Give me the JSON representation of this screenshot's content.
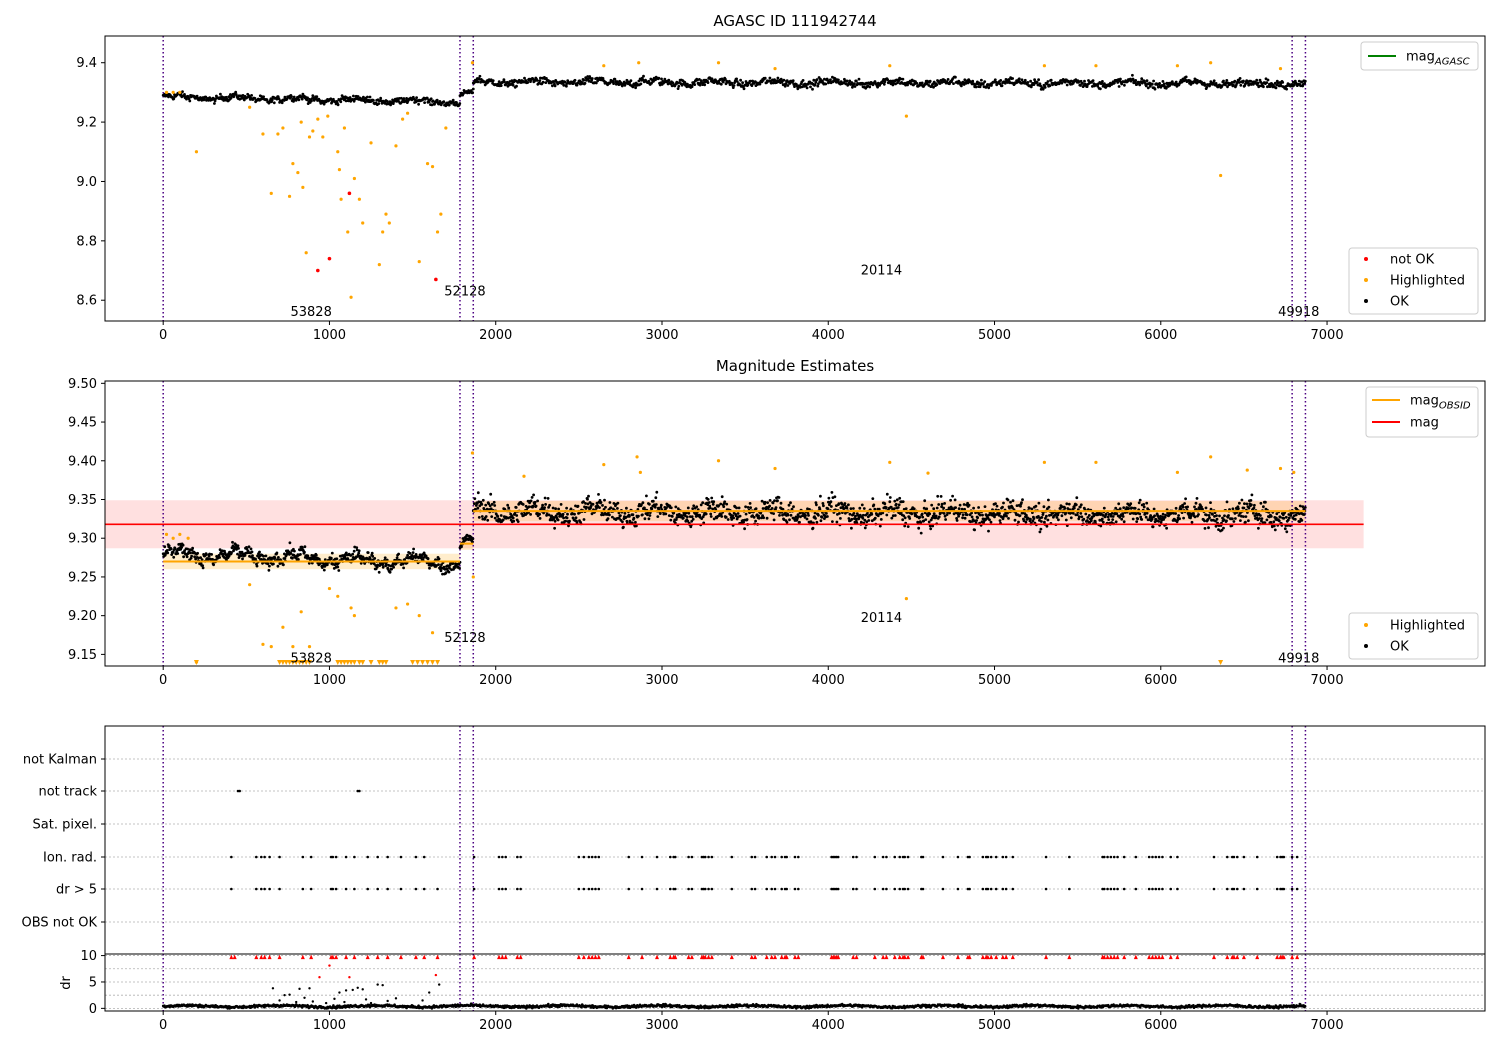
{
  "chart_data": [
    {
      "type": "scatter",
      "title": "AGASC ID 111942744",
      "xlim": [
        -350,
        7950
      ],
      "ylim": [
        8.53,
        9.49
      ],
      "xticks": [
        "0",
        "1000",
        "2000",
        "3000",
        "4000",
        "5000",
        "6000",
        "7000"
      ],
      "yticks": [
        "8.6",
        "8.8",
        "9.0",
        "9.2",
        "9.4"
      ],
      "obsid_boundaries": [
        0,
        1785,
        1865,
        6790,
        6870
      ],
      "obsid_labels": [
        {
          "text": "53828",
          "x": 890,
          "y": 8.56
        },
        {
          "text": "52128",
          "x": 1815,
          "y": 8.63
        },
        {
          "text": "20114",
          "x": 4320,
          "y": 8.7
        },
        {
          "text": "49918",
          "x": 6830,
          "y": 8.56
        }
      ],
      "legend_top": [
        {
          "name": "mag_AGASC",
          "base": "mag",
          "sub": "AGASC",
          "color": "#008000"
        }
      ],
      "legend_bottom": [
        {
          "name": "not OK",
          "color": "#ff0000"
        },
        {
          "name": "Highlighted",
          "color": "#ffa500"
        },
        {
          "name": "OK",
          "color": "#000000"
        }
      ],
      "segments": [
        {
          "x0": 0,
          "x1": 1785,
          "y_start": 9.285,
          "y_end": 9.268,
          "noise": 0.01
        },
        {
          "x0": 1785,
          "x1": 1865,
          "y_start": 9.29,
          "y_end": 9.3,
          "noise": 0.008
        },
        {
          "x0": 1865,
          "x1": 6870,
          "y_start": 9.335,
          "y_end": 9.33,
          "noise": 0.012
        }
      ],
      "highlight_points": [
        [
          200,
          9.1
        ],
        [
          520,
          9.25
        ],
        [
          600,
          9.16
        ],
        [
          650,
          8.96
        ],
        [
          690,
          9.16
        ],
        [
          720,
          9.18
        ],
        [
          760,
          8.95
        ],
        [
          780,
          9.06
        ],
        [
          810,
          9.03
        ],
        [
          830,
          9.2
        ],
        [
          840,
          8.98
        ],
        [
          860,
          8.76
        ],
        [
          880,
          9.15
        ],
        [
          900,
          9.17
        ],
        [
          930,
          9.21
        ],
        [
          960,
          9.15
        ],
        [
          990,
          9.22
        ],
        [
          1050,
          9.1
        ],
        [
          1060,
          9.04
        ],
        [
          1070,
          8.94
        ],
        [
          1090,
          9.18
        ],
        [
          1110,
          8.83
        ],
        [
          1130,
          8.61
        ],
        [
          1150,
          9.01
        ],
        [
          1180,
          8.94
        ],
        [
          1200,
          8.86
        ],
        [
          1250,
          9.13
        ],
        [
          1300,
          8.72
        ],
        [
          1320,
          8.83
        ],
        [
          1340,
          8.89
        ],
        [
          1360,
          8.86
        ],
        [
          1400,
          9.12
        ],
        [
          1440,
          9.21
        ],
        [
          1470,
          9.23
        ],
        [
          1540,
          8.73
        ],
        [
          1590,
          9.06
        ],
        [
          1620,
          9.05
        ],
        [
          1650,
          8.83
        ],
        [
          1670,
          8.89
        ],
        [
          1700,
          9.18
        ],
        [
          4470,
          9.22
        ],
        [
          6360,
          9.02
        ],
        [
          2650,
          9.39
        ],
        [
          2860,
          9.4
        ],
        [
          3340,
          9.4
        ],
        [
          3680,
          9.38
        ],
        [
          4370,
          9.39
        ],
        [
          5300,
          9.39
        ],
        [
          5610,
          9.39
        ],
        [
          6100,
          9.39
        ],
        [
          6300,
          9.4
        ],
        [
          6720,
          9.38
        ],
        [
          20,
          9.3
        ],
        [
          60,
          9.3
        ],
        [
          100,
          9.3
        ],
        [
          1860,
          9.4
        ]
      ],
      "notok_points": [
        [
          930,
          8.7
        ],
        [
          1000,
          8.74
        ],
        [
          1120,
          8.96
        ],
        [
          1640,
          8.67
        ]
      ]
    },
    {
      "type": "scatter",
      "title": "Magnitude Estimates",
      "xlim": [
        -350,
        7950
      ],
      "ylim": [
        9.135,
        9.503
      ],
      "xticks": [
        "0",
        "1000",
        "2000",
        "3000",
        "4000",
        "5000",
        "6000",
        "7000"
      ],
      "yticks": [
        "9.15",
        "9.20",
        "9.25",
        "9.30",
        "9.35",
        "9.40",
        "9.45",
        "9.50"
      ],
      "obsid_boundaries": [
        0,
        1785,
        1865,
        6790,
        6870
      ],
      "obsid_labels": [
        {
          "text": "53828",
          "x": 890,
          "y": 9.145
        },
        {
          "text": "52128",
          "x": 1815,
          "y": 9.171
        },
        {
          "text": "20114",
          "x": 4320,
          "y": 9.197
        },
        {
          "text": "49918",
          "x": 6830,
          "y": 9.145
        }
      ],
      "legend_top": [
        {
          "name": "mag_OBSID",
          "base": "mag",
          "sub": "OBSID",
          "color": "#ffa500"
        },
        {
          "name": "mag",
          "base": "mag",
          "sub": "",
          "color": "#ff0000"
        }
      ],
      "legend_bottom": [
        {
          "name": "Highlighted",
          "color": "#ffa500"
        },
        {
          "name": "OK",
          "color": "#000000"
        }
      ],
      "mag_line": {
        "value": 9.318,
        "band": [
          9.287,
          9.349
        ],
        "x0": -350,
        "x1": 7220
      },
      "obsid_mags": [
        {
          "x0": 0,
          "x1": 1785,
          "value": 9.27,
          "band": [
            9.26,
            9.28
          ]
        },
        {
          "x0": 1785,
          "x1": 1865,
          "value": 9.293,
          "band": [
            9.285,
            9.301
          ]
        },
        {
          "x0": 1865,
          "x1": 6870,
          "value": 9.335,
          "band": [
            9.322,
            9.348
          ]
        }
      ],
      "segments": [
        {
          "x0": 0,
          "x1": 1785,
          "y_start": 9.28,
          "y_end": 9.268,
          "noise": 0.008
        },
        {
          "x0": 1785,
          "x1": 1865,
          "y_start": 9.29,
          "y_end": 9.298,
          "noise": 0.005
        },
        {
          "x0": 1865,
          "x1": 6870,
          "y_start": 9.335,
          "y_end": 9.33,
          "noise": 0.014
        }
      ],
      "highlight_points": [
        [
          20,
          9.305
        ],
        [
          60,
          9.3
        ],
        [
          100,
          9.305
        ],
        [
          150,
          9.3
        ],
        [
          200,
          9.14
        ],
        [
          520,
          9.24
        ],
        [
          600,
          9.163
        ],
        [
          650,
          9.16
        ],
        [
          720,
          9.185
        ],
        [
          780,
          9.16
        ],
        [
          830,
          9.205
        ],
        [
          880,
          9.16
        ],
        [
          1000,
          9.235
        ],
        [
          1050,
          9.225
        ],
        [
          1130,
          9.21
        ],
        [
          1150,
          9.2
        ],
        [
          1400,
          9.21
        ],
        [
          1470,
          9.215
        ],
        [
          1540,
          9.2
        ],
        [
          1620,
          9.178
        ],
        [
          1860,
          9.41
        ],
        [
          1865,
          9.25
        ],
        [
          2170,
          9.38
        ],
        [
          2650,
          9.395
        ],
        [
          2850,
          9.405
        ],
        [
          2870,
          9.385
        ],
        [
          3340,
          9.4
        ],
        [
          3680,
          9.39
        ],
        [
          4370,
          9.398
        ],
        [
          4470,
          9.222
        ],
        [
          4600,
          9.384
        ],
        [
          5300,
          9.398
        ],
        [
          5610,
          9.398
        ],
        [
          6100,
          9.385
        ],
        [
          6300,
          9.405
        ],
        [
          6520,
          9.388
        ],
        [
          6720,
          9.39
        ],
        [
          6800,
          9.385
        ]
      ],
      "clipped_points": [
        200,
        700,
        720,
        740,
        760,
        780,
        800,
        820,
        840,
        860,
        880,
        1050,
        1070,
        1090,
        1110,
        1130,
        1150,
        1180,
        1200,
        1250,
        1300,
        1320,
        1340,
        1500,
        1530,
        1560,
        1590,
        1620,
        1650,
        6360
      ]
    },
    {
      "type": "scatter",
      "title": "",
      "xlim": [
        -350,
        7950
      ],
      "categories": [
        "not Kalman",
        "not track",
        "Sat. pixel.",
        "Ion. rad.",
        "dr > 5",
        "OBS not OK"
      ],
      "flag_points": {
        "not track": [
          450,
          460,
          1170,
          1180
        ],
        "Ion. rad.": [
          410,
          560,
          590,
          610,
          640,
          700,
          840,
          890,
          1010,
          1020,
          1040,
          1100,
          1150,
          1230,
          1290,
          1350,
          1430,
          1520,
          1570,
          1870,
          2020,
          2040,
          2060,
          2130,
          2150,
          2500,
          2530,
          2560,
          2580,
          2600,
          2620,
          2800,
          2880,
          2970,
          3050,
          3070,
          3080,
          3160,
          3180,
          3240,
          3250,
          3260,
          3280,
          3300,
          3420,
          3540,
          3560,
          3630,
          3660,
          3680,
          3720,
          3740,
          3750,
          3800,
          3820,
          4020,
          4030,
          4040,
          4050,
          4060,
          4150,
          4170,
          4280,
          4330,
          4350,
          4400,
          4430,
          4450,
          4460,
          4480,
          4560,
          4570,
          4690,
          4780,
          4840,
          4850,
          4930,
          4950,
          4960,
          4980,
          5010,
          5050,
          5070,
          5110,
          5310,
          5450,
          5650,
          5660,
          5680,
          5700,
          5720,
          5740,
          5780,
          5850,
          5930,
          5950,
          5970,
          5990,
          6010,
          6060,
          6100,
          6320,
          6400,
          6430,
          6440,
          6460,
          6500,
          6580,
          6700,
          6720,
          6730,
          6740,
          6790,
          6820
        ],
        "dr > 5": [
          410,
          560,
          590,
          610,
          640,
          700,
          840,
          890,
          1010,
          1020,
          1040,
          1100,
          1150,
          1230,
          1290,
          1350,
          1430,
          1520,
          1570,
          1650,
          1870,
          2020,
          2040,
          2060,
          2130,
          2150,
          2500,
          2530,
          2560,
          2580,
          2600,
          2620,
          2800,
          2880,
          2970,
          3050,
          3070,
          3080,
          3160,
          3180,
          3240,
          3250,
          3260,
          3280,
          3300,
          3420,
          3540,
          3560,
          3630,
          3660,
          3680,
          3720,
          3740,
          3750,
          3800,
          3820,
          4020,
          4030,
          4040,
          4050,
          4060,
          4150,
          4170,
          4280,
          4330,
          4350,
          4400,
          4430,
          4450,
          4460,
          4480,
          4560,
          4570,
          4690,
          4780,
          4840,
          4850,
          4930,
          4950,
          4960,
          4980,
          5010,
          5050,
          5070,
          5110,
          5310,
          5450,
          5650,
          5660,
          5680,
          5700,
          5720,
          5740,
          5780,
          5850,
          5930,
          5950,
          5970,
          5990,
          6010,
          6060,
          6100,
          6320,
          6400,
          6430,
          6440,
          6460,
          6500,
          6580,
          6700,
          6720,
          6730,
          6740,
          6790,
          6820
        ]
      },
      "obsid_boundaries": [
        0,
        1785,
        1865,
        6790,
        6870
      ]
    },
    {
      "type": "scatter",
      "title": "",
      "ylabel": "dr",
      "xlim": [
        -350,
        7950
      ],
      "ylim": [
        -0.5,
        10.3
      ],
      "xticks": [
        "0",
        "1000",
        "2000",
        "3000",
        "4000",
        "5000",
        "6000",
        "7000"
      ],
      "yticks": [
        "0",
        "5",
        "10"
      ],
      "baseline": {
        "mean": 0.4,
        "noise": 0.25,
        "x0": 0,
        "x1": 6870
      },
      "scatter_points": [
        [
          660,
          3.8
        ],
        [
          700,
          1.5
        ],
        [
          730,
          2.5
        ],
        [
          760,
          2.6
        ],
        [
          800,
          1.2
        ],
        [
          820,
          3.7
        ],
        [
          850,
          2.0
        ],
        [
          880,
          3.8
        ],
        [
          900,
          1.3
        ],
        [
          940,
          5.9
        ],
        [
          980,
          1.0
        ],
        [
          1000,
          8.1
        ],
        [
          1030,
          1.8
        ],
        [
          1060,
          3.0
        ],
        [
          1090,
          1.2
        ],
        [
          1100,
          3.4
        ],
        [
          1120,
          5.9
        ],
        [
          1140,
          3.5
        ],
        [
          1170,
          3.9
        ],
        [
          1200,
          3.6
        ],
        [
          1220,
          1.7
        ],
        [
          1250,
          1.0
        ],
        [
          1290,
          4.5
        ],
        [
          1320,
          4.4
        ],
        [
          1350,
          1.4
        ],
        [
          1400,
          1.9
        ],
        [
          1560,
          1.5
        ],
        [
          1600,
          3.0
        ],
        [
          1640,
          6.3
        ],
        [
          1660,
          4.5
        ]
      ],
      "clipped_x": [
        410,
        430,
        560,
        590,
        610,
        640,
        700,
        840,
        890,
        1010,
        1020,
        1040,
        1100,
        1150,
        1230,
        1290,
        1350,
        1430,
        1520,
        1570,
        1650,
        1870,
        2020,
        2040,
        2060,
        2130,
        2150,
        2500,
        2530,
        2560,
        2580,
        2600,
        2620,
        2800,
        2880,
        2970,
        3050,
        3070,
        3080,
        3160,
        3180,
        3240,
        3250,
        3260,
        3280,
        3300,
        3420,
        3540,
        3560,
        3630,
        3660,
        3680,
        3720,
        3740,
        3750,
        3800,
        3820,
        4020,
        4030,
        4040,
        4050,
        4060,
        4150,
        4170,
        4280,
        4330,
        4350,
        4400,
        4430,
        4450,
        4460,
        4480,
        4560,
        4570,
        4690,
        4780,
        4840,
        4850,
        4930,
        4950,
        4960,
        4980,
        5010,
        5050,
        5070,
        5110,
        5310,
        5450,
        5650,
        5660,
        5680,
        5700,
        5720,
        5740,
        5780,
        5850,
        5930,
        5950,
        5970,
        5990,
        6010,
        6060,
        6100,
        6320,
        6400,
        6430,
        6440,
        6460,
        6500,
        6580,
        6700,
        6720,
        6730,
        6740,
        6790,
        6820
      ],
      "obsid_boundaries": [
        0,
        1785,
        1865,
        6790,
        6870
      ]
    }
  ]
}
